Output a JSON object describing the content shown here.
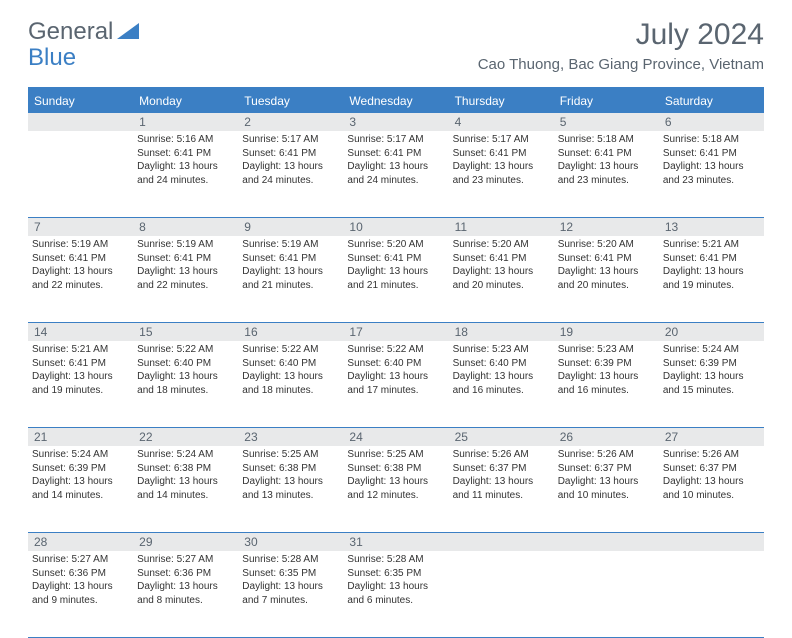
{
  "brand": {
    "part1": "General",
    "part2": "Blue"
  },
  "title": "July 2024",
  "location": "Cao Thuong, Bac Giang Province, Vietnam",
  "day_names": [
    "Sunday",
    "Monday",
    "Tuesday",
    "Wednesday",
    "Thursday",
    "Friday",
    "Saturday"
  ],
  "colors": {
    "header_bg": "#3b7fc4",
    "header_text": "#ffffff",
    "daynum_bg": "#e8e9ea",
    "text_gray": "#5a6570",
    "body_text": "#333333",
    "border": "#3b7fc4"
  },
  "weeks": [
    {
      "nums": [
        "",
        "1",
        "2",
        "3",
        "4",
        "5",
        "6"
      ],
      "cells": [
        {
          "sunrise": "",
          "sunset": "",
          "daylight1": "",
          "daylight2": ""
        },
        {
          "sunrise": "Sunrise: 5:16 AM",
          "sunset": "Sunset: 6:41 PM",
          "daylight1": "Daylight: 13 hours",
          "daylight2": "and 24 minutes."
        },
        {
          "sunrise": "Sunrise: 5:17 AM",
          "sunset": "Sunset: 6:41 PM",
          "daylight1": "Daylight: 13 hours",
          "daylight2": "and 24 minutes."
        },
        {
          "sunrise": "Sunrise: 5:17 AM",
          "sunset": "Sunset: 6:41 PM",
          "daylight1": "Daylight: 13 hours",
          "daylight2": "and 24 minutes."
        },
        {
          "sunrise": "Sunrise: 5:17 AM",
          "sunset": "Sunset: 6:41 PM",
          "daylight1": "Daylight: 13 hours",
          "daylight2": "and 23 minutes."
        },
        {
          "sunrise": "Sunrise: 5:18 AM",
          "sunset": "Sunset: 6:41 PM",
          "daylight1": "Daylight: 13 hours",
          "daylight2": "and 23 minutes."
        },
        {
          "sunrise": "Sunrise: 5:18 AM",
          "sunset": "Sunset: 6:41 PM",
          "daylight1": "Daylight: 13 hours",
          "daylight2": "and 23 minutes."
        }
      ]
    },
    {
      "nums": [
        "7",
        "8",
        "9",
        "10",
        "11",
        "12",
        "13"
      ],
      "cells": [
        {
          "sunrise": "Sunrise: 5:19 AM",
          "sunset": "Sunset: 6:41 PM",
          "daylight1": "Daylight: 13 hours",
          "daylight2": "and 22 minutes."
        },
        {
          "sunrise": "Sunrise: 5:19 AM",
          "sunset": "Sunset: 6:41 PM",
          "daylight1": "Daylight: 13 hours",
          "daylight2": "and 22 minutes."
        },
        {
          "sunrise": "Sunrise: 5:19 AM",
          "sunset": "Sunset: 6:41 PM",
          "daylight1": "Daylight: 13 hours",
          "daylight2": "and 21 minutes."
        },
        {
          "sunrise": "Sunrise: 5:20 AM",
          "sunset": "Sunset: 6:41 PM",
          "daylight1": "Daylight: 13 hours",
          "daylight2": "and 21 minutes."
        },
        {
          "sunrise": "Sunrise: 5:20 AM",
          "sunset": "Sunset: 6:41 PM",
          "daylight1": "Daylight: 13 hours",
          "daylight2": "and 20 minutes."
        },
        {
          "sunrise": "Sunrise: 5:20 AM",
          "sunset": "Sunset: 6:41 PM",
          "daylight1": "Daylight: 13 hours",
          "daylight2": "and 20 minutes."
        },
        {
          "sunrise": "Sunrise: 5:21 AM",
          "sunset": "Sunset: 6:41 PM",
          "daylight1": "Daylight: 13 hours",
          "daylight2": "and 19 minutes."
        }
      ]
    },
    {
      "nums": [
        "14",
        "15",
        "16",
        "17",
        "18",
        "19",
        "20"
      ],
      "cells": [
        {
          "sunrise": "Sunrise: 5:21 AM",
          "sunset": "Sunset: 6:41 PM",
          "daylight1": "Daylight: 13 hours",
          "daylight2": "and 19 minutes."
        },
        {
          "sunrise": "Sunrise: 5:22 AM",
          "sunset": "Sunset: 6:40 PM",
          "daylight1": "Daylight: 13 hours",
          "daylight2": "and 18 minutes."
        },
        {
          "sunrise": "Sunrise: 5:22 AM",
          "sunset": "Sunset: 6:40 PM",
          "daylight1": "Daylight: 13 hours",
          "daylight2": "and 18 minutes."
        },
        {
          "sunrise": "Sunrise: 5:22 AM",
          "sunset": "Sunset: 6:40 PM",
          "daylight1": "Daylight: 13 hours",
          "daylight2": "and 17 minutes."
        },
        {
          "sunrise": "Sunrise: 5:23 AM",
          "sunset": "Sunset: 6:40 PM",
          "daylight1": "Daylight: 13 hours",
          "daylight2": "and 16 minutes."
        },
        {
          "sunrise": "Sunrise: 5:23 AM",
          "sunset": "Sunset: 6:39 PM",
          "daylight1": "Daylight: 13 hours",
          "daylight2": "and 16 minutes."
        },
        {
          "sunrise": "Sunrise: 5:24 AM",
          "sunset": "Sunset: 6:39 PM",
          "daylight1": "Daylight: 13 hours",
          "daylight2": "and 15 minutes."
        }
      ]
    },
    {
      "nums": [
        "21",
        "22",
        "23",
        "24",
        "25",
        "26",
        "27"
      ],
      "cells": [
        {
          "sunrise": "Sunrise: 5:24 AM",
          "sunset": "Sunset: 6:39 PM",
          "daylight1": "Daylight: 13 hours",
          "daylight2": "and 14 minutes."
        },
        {
          "sunrise": "Sunrise: 5:24 AM",
          "sunset": "Sunset: 6:38 PM",
          "daylight1": "Daylight: 13 hours",
          "daylight2": "and 14 minutes."
        },
        {
          "sunrise": "Sunrise: 5:25 AM",
          "sunset": "Sunset: 6:38 PM",
          "daylight1": "Daylight: 13 hours",
          "daylight2": "and 13 minutes."
        },
        {
          "sunrise": "Sunrise: 5:25 AM",
          "sunset": "Sunset: 6:38 PM",
          "daylight1": "Daylight: 13 hours",
          "daylight2": "and 12 minutes."
        },
        {
          "sunrise": "Sunrise: 5:26 AM",
          "sunset": "Sunset: 6:37 PM",
          "daylight1": "Daylight: 13 hours",
          "daylight2": "and 11 minutes."
        },
        {
          "sunrise": "Sunrise: 5:26 AM",
          "sunset": "Sunset: 6:37 PM",
          "daylight1": "Daylight: 13 hours",
          "daylight2": "and 10 minutes."
        },
        {
          "sunrise": "Sunrise: 5:26 AM",
          "sunset": "Sunset: 6:37 PM",
          "daylight1": "Daylight: 13 hours",
          "daylight2": "and 10 minutes."
        }
      ]
    },
    {
      "nums": [
        "28",
        "29",
        "30",
        "31",
        "",
        "",
        ""
      ],
      "cells": [
        {
          "sunrise": "Sunrise: 5:27 AM",
          "sunset": "Sunset: 6:36 PM",
          "daylight1": "Daylight: 13 hours",
          "daylight2": "and 9 minutes."
        },
        {
          "sunrise": "Sunrise: 5:27 AM",
          "sunset": "Sunset: 6:36 PM",
          "daylight1": "Daylight: 13 hours",
          "daylight2": "and 8 minutes."
        },
        {
          "sunrise": "Sunrise: 5:28 AM",
          "sunset": "Sunset: 6:35 PM",
          "daylight1": "Daylight: 13 hours",
          "daylight2": "and 7 minutes."
        },
        {
          "sunrise": "Sunrise: 5:28 AM",
          "sunset": "Sunset: 6:35 PM",
          "daylight1": "Daylight: 13 hours",
          "daylight2": "and 6 minutes."
        },
        {
          "sunrise": "",
          "sunset": "",
          "daylight1": "",
          "daylight2": ""
        },
        {
          "sunrise": "",
          "sunset": "",
          "daylight1": "",
          "daylight2": ""
        },
        {
          "sunrise": "",
          "sunset": "",
          "daylight1": "",
          "daylight2": ""
        }
      ]
    }
  ]
}
